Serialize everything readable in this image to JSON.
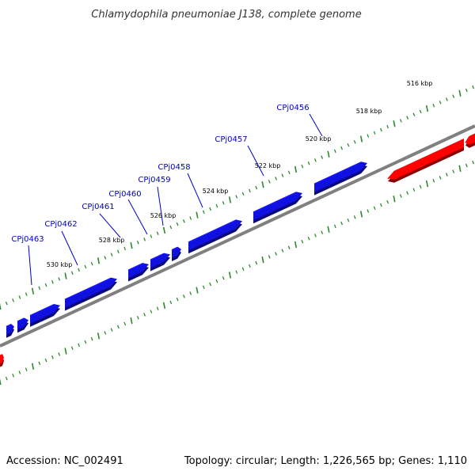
{
  "title": "Chlamydophila pneumoniae J138, complete genome",
  "footer": {
    "accession": "Accession: NC_002491",
    "summary": "Topology: circular; Length: 1,226,565 bp; Genes: 1,110"
  },
  "colors": {
    "forward_gene": "#1010e0",
    "reverse_gene": "#ff0000",
    "backbone": "#808080",
    "ticks": "#2a8a2a",
    "gene_label": "#0000cc"
  },
  "kbp_labels": [
    "516 kbp",
    "518 kbp",
    "520 kbp",
    "522 kbp",
    "524 kbp",
    "526 kbp",
    "528 kbp",
    "530 kbp"
  ],
  "gene_labels": [
    "CPj0456",
    "CPj0457",
    "CPj0458",
    "CPj0459",
    "CPj0460",
    "CPj0461",
    "CPj0462",
    "CPj0463"
  ]
}
